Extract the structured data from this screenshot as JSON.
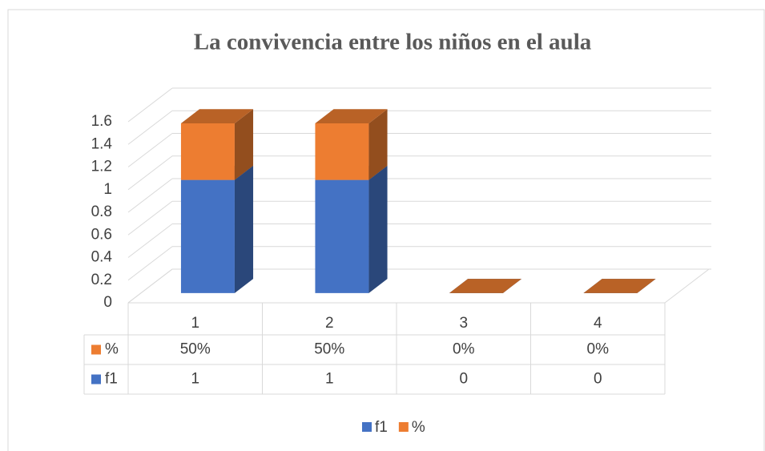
{
  "chart_data": {
    "type": "bar3d_stacked",
    "title": "La convivencia entre los niños en el aula",
    "categories": [
      "1",
      "2",
      "3",
      "4"
    ],
    "series": [
      {
        "name": "f1",
        "color": "#4472c4",
        "values": [
          1,
          1,
          0,
          0
        ]
      },
      {
        "name": "%",
        "color": "#ed7d31",
        "values": [
          0.5,
          0.5,
          0,
          0
        ],
        "value_labels": [
          "50%",
          "50%",
          "0%",
          "0%"
        ]
      }
    ],
    "ylim": [
      0,
      1.6
    ],
    "yticks": [
      0,
      0.2,
      0.4,
      0.6,
      0.8,
      1,
      1.2,
      1.4,
      1.6
    ],
    "grid": true,
    "legend": "bottom"
  }
}
